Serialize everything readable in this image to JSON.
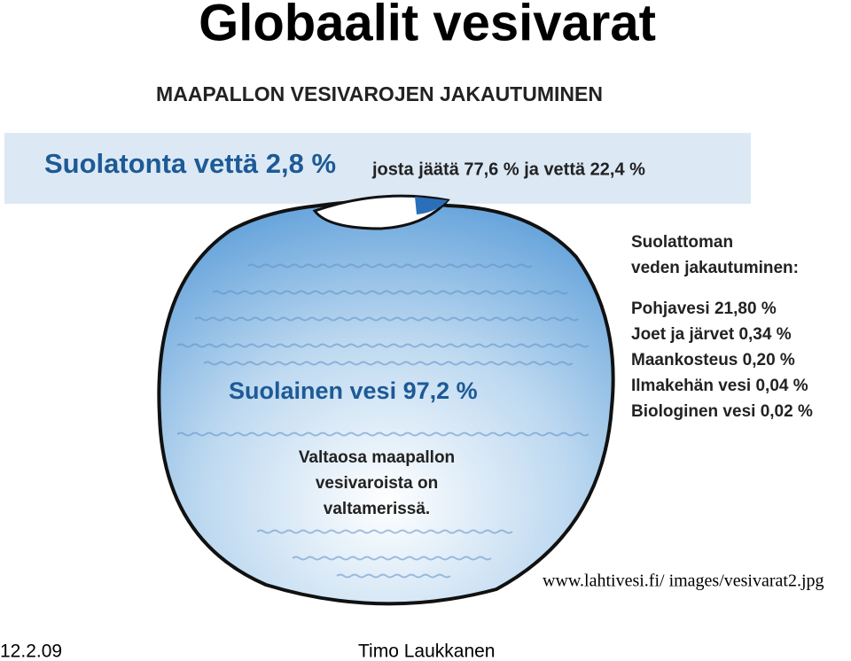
{
  "slide": {
    "title": "Globaalit vesivarat",
    "figure": {
      "heading": "MAAPALLON VESIVAROJEN JAKAUTUMINEN",
      "fresh_water": "Suolatonta vettä 2,8 %",
      "fresh_water_split": "josta jäätä 77,6 % ja vettä 22,4 %",
      "salt_water": "Suolainen vesi 97,2 %",
      "salt_note": [
        "Valtaosa maapallon",
        "vesivaroista on",
        "valtamerissä."
      ],
      "breakdown_heading": [
        "Suolattoman",
        "veden jakautuminen:"
      ],
      "breakdown": [
        "Pohjavesi 21,80 %",
        "Joet ja järvet 0,34 %",
        "Maankosteus 0,20 %",
        "Ilmakehän vesi 0,04 %",
        "Biologinen vesi 0,02 %"
      ]
    },
    "source": "www.lahtivesi.fi/ images/vesivarat2.jpg",
    "date": "12.2.09",
    "author": "Timo Laukkanen"
  }
}
